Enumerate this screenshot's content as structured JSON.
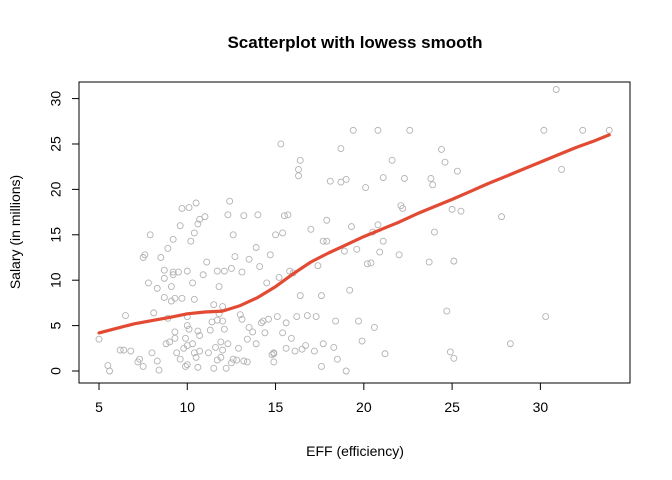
{
  "chart_data": {
    "type": "scatter",
    "title": "Scatterplot with lowess smooth",
    "xlabel": "EFF (efficiency)",
    "ylabel": "Salary (in millions)",
    "xlim": [
      5,
      34
    ],
    "ylim": [
      0,
      31
    ],
    "xticks": [
      5,
      10,
      15,
      20,
      25,
      30
    ],
    "yticks": [
      0,
      5,
      10,
      15,
      20,
      25,
      30
    ],
    "grid": false,
    "point_color": "#b3b3b3",
    "line_color": "#e34a33",
    "points": [
      [
        5.0,
        3.5
      ],
      [
        5.5,
        0.6
      ],
      [
        5.6,
        0.0
      ],
      [
        6.2,
        2.3
      ],
      [
        6.4,
        2.3
      ],
      [
        6.5,
        6.1
      ],
      [
        6.8,
        2.2
      ],
      [
        7.2,
        1.0
      ],
      [
        7.3,
        1.3
      ],
      [
        7.5,
        0.5
      ],
      [
        7.5,
        12.5
      ],
      [
        7.6,
        12.8
      ],
      [
        7.8,
        9.7
      ],
      [
        7.9,
        15.0
      ],
      [
        8.0,
        2.0
      ],
      [
        8.1,
        6.4
      ],
      [
        8.3,
        1.1
      ],
      [
        8.3,
        9.1
      ],
      [
        8.4,
        0.1
      ],
      [
        8.5,
        12.5
      ],
      [
        8.7,
        8.1
      ],
      [
        8.7,
        10.2
      ],
      [
        8.7,
        11.1
      ],
      [
        8.8,
        3.0
      ],
      [
        8.9,
        5.8
      ],
      [
        8.9,
        13.5
      ],
      [
        9.0,
        3.2
      ],
      [
        9.1,
        7.7
      ],
      [
        9.1,
        9.3
      ],
      [
        9.2,
        10.6
      ],
      [
        9.2,
        10.9
      ],
      [
        9.2,
        14.5
      ],
      [
        9.3,
        3.6
      ],
      [
        9.3,
        4.3
      ],
      [
        9.3,
        8.0
      ],
      [
        9.4,
        2.0
      ],
      [
        9.5,
        10.9
      ],
      [
        9.6,
        1.3
      ],
      [
        9.6,
        16.0
      ],
      [
        9.7,
        17.9
      ],
      [
        9.7,
        8.0
      ],
      [
        9.8,
        2.5
      ],
      [
        9.9,
        0.5
      ],
      [
        9.9,
        3.6
      ],
      [
        10.0,
        0.7
      ],
      [
        10.0,
        2.8
      ],
      [
        10.0,
        5.0
      ],
      [
        10.0,
        6.0
      ],
      [
        10.0,
        11.0
      ],
      [
        10.1,
        4.6
      ],
      [
        10.1,
        18.0
      ],
      [
        10.2,
        14.3
      ],
      [
        10.3,
        3.0
      ],
      [
        10.3,
        9.7
      ],
      [
        10.4,
        2.0
      ],
      [
        10.4,
        7.9
      ],
      [
        10.4,
        15.2
      ],
      [
        10.5,
        1.5
      ],
      [
        10.5,
        18.5
      ],
      [
        10.6,
        0.4
      ],
      [
        10.6,
        4.4
      ],
      [
        10.6,
        16.2
      ],
      [
        10.7,
        2.2
      ],
      [
        10.7,
        16.7
      ],
      [
        10.7,
        3.9
      ],
      [
        10.9,
        10.6
      ],
      [
        11.0,
        17.0
      ],
      [
        11.1,
        12.0
      ],
      [
        11.2,
        2.0
      ],
      [
        11.3,
        4.5
      ],
      [
        11.4,
        5.4
      ],
      [
        11.5,
        0.3
      ],
      [
        11.5,
        7.3
      ],
      [
        11.6,
        2.6
      ],
      [
        11.7,
        1.2
      ],
      [
        11.7,
        5.6
      ],
      [
        11.7,
        11.0
      ],
      [
        11.8,
        6.3
      ],
      [
        11.8,
        9.3
      ],
      [
        11.9,
        3.2
      ],
      [
        11.9,
        1.5
      ],
      [
        12.0,
        2.3
      ],
      [
        12.0,
        5.5
      ],
      [
        12.0,
        7.1
      ],
      [
        12.1,
        11.0
      ],
      [
        12.1,
        4.6
      ],
      [
        12.2,
        0.3
      ],
      [
        12.3,
        3.0
      ],
      [
        12.3,
        17.2
      ],
      [
        12.4,
        18.7
      ],
      [
        12.5,
        11.3
      ],
      [
        12.5,
        0.9
      ],
      [
        12.6,
        1.3
      ],
      [
        12.6,
        15.0
      ],
      [
        12.7,
        12.6
      ],
      [
        12.8,
        1.2
      ],
      [
        12.9,
        2.5
      ],
      [
        13.0,
        6.2
      ],
      [
        13.1,
        10.9
      ],
      [
        13.1,
        5.7
      ],
      [
        13.2,
        1.1
      ],
      [
        13.2,
        17.1
      ],
      [
        13.4,
        1.0
      ],
      [
        13.4,
        3.5
      ],
      [
        13.5,
        4.8
      ],
      [
        13.5,
        12.3
      ],
      [
        13.7,
        4.3
      ],
      [
        13.9,
        13.6
      ],
      [
        13.9,
        3.0
      ],
      [
        14.0,
        17.2
      ],
      [
        14.1,
        11.5
      ],
      [
        14.2,
        5.3
      ],
      [
        14.3,
        5.5
      ],
      [
        14.4,
        4.2
      ],
      [
        14.5,
        9.7
      ],
      [
        14.6,
        5.7
      ],
      [
        14.7,
        12.8
      ],
      [
        14.8,
        1.8
      ],
      [
        14.9,
        1.9
      ],
      [
        14.9,
        1.0
      ],
      [
        14.9,
        2.0
      ],
      [
        15.0,
        15.0
      ],
      [
        15.1,
        6.0
      ],
      [
        15.2,
        10.3
      ],
      [
        15.3,
        25.0
      ],
      [
        15.4,
        15.2
      ],
      [
        15.4,
        4.2
      ],
      [
        15.5,
        17.1
      ],
      [
        15.6,
        2.5
      ],
      [
        15.6,
        5.3
      ],
      [
        15.7,
        17.2
      ],
      [
        15.8,
        11.0
      ],
      [
        15.9,
        3.6
      ],
      [
        16.0,
        10.8
      ],
      [
        16.1,
        2.2
      ],
      [
        16.2,
        6.0
      ],
      [
        16.3,
        22.2
      ],
      [
        16.3,
        21.5
      ],
      [
        16.4,
        23.2
      ],
      [
        16.4,
        8.3
      ],
      [
        16.5,
        2.4
      ],
      [
        16.7,
        2.8
      ],
      [
        16.8,
        6.1
      ],
      [
        17.0,
        15.6
      ],
      [
        17.2,
        2.2
      ],
      [
        17.3,
        6.0
      ],
      [
        17.4,
        11.6
      ],
      [
        17.6,
        8.3
      ],
      [
        17.6,
        0.5
      ],
      [
        17.7,
        3.0
      ],
      [
        17.7,
        14.3
      ],
      [
        17.9,
        14.3
      ],
      [
        17.9,
        16.6
      ],
      [
        18.1,
        20.9
      ],
      [
        18.3,
        2.6
      ],
      [
        18.4,
        5.5
      ],
      [
        18.5,
        1.3
      ],
      [
        18.7,
        20.8
      ],
      [
        18.7,
        24.5
      ],
      [
        18.9,
        13.2
      ],
      [
        19.0,
        21.1
      ],
      [
        19.0,
        0.0
      ],
      [
        19.2,
        8.9
      ],
      [
        19.3,
        15.9
      ],
      [
        19.4,
        26.5
      ],
      [
        19.6,
        13.4
      ],
      [
        19.7,
        5.5
      ],
      [
        19.9,
        3.3
      ],
      [
        20.1,
        20.2
      ],
      [
        20.2,
        11.8
      ],
      [
        20.4,
        11.9
      ],
      [
        20.5,
        15.3
      ],
      [
        20.6,
        4.8
      ],
      [
        20.8,
        16.1
      ],
      [
        20.8,
        26.5
      ],
      [
        20.9,
        13.1
      ],
      [
        21.1,
        14.3
      ],
      [
        21.1,
        21.3
      ],
      [
        21.2,
        1.9
      ],
      [
        21.6,
        23.2
      ],
      [
        22.0,
        12.8
      ],
      [
        22.1,
        18.2
      ],
      [
        22.2,
        17.9
      ],
      [
        22.3,
        21.2
      ],
      [
        22.6,
        26.5
      ],
      [
        23.7,
        12.0
      ],
      [
        23.8,
        21.2
      ],
      [
        23.9,
        20.5
      ],
      [
        24.0,
        15.3
      ],
      [
        24.4,
        24.4
      ],
      [
        24.6,
        23.0
      ],
      [
        24.7,
        6.6
      ],
      [
        24.9,
        2.1
      ],
      [
        25.0,
        17.8
      ],
      [
        25.1,
        1.4
      ],
      [
        25.1,
        12.1
      ],
      [
        25.3,
        22.0
      ],
      [
        25.5,
        17.6
      ],
      [
        27.8,
        17.0
      ],
      [
        28.3,
        3.0
      ],
      [
        30.2,
        26.5
      ],
      [
        30.3,
        6.0
      ],
      [
        30.9,
        31.0
      ],
      [
        31.2,
        22.2
      ],
      [
        32.4,
        26.5
      ],
      [
        33.9,
        26.5
      ]
    ],
    "lowess": [
      [
        5.0,
        4.2
      ],
      [
        6.0,
        4.7
      ],
      [
        7.0,
        5.2
      ],
      [
        8.0,
        5.55
      ],
      [
        9.0,
        5.9
      ],
      [
        10.0,
        6.3
      ],
      [
        11.0,
        6.5
      ],
      [
        12.0,
        6.6
      ],
      [
        13.0,
        7.2
      ],
      [
        14.0,
        8.1
      ],
      [
        15.0,
        9.3
      ],
      [
        16.0,
        10.7
      ],
      [
        17.0,
        12.0
      ],
      [
        18.0,
        13.0
      ],
      [
        19.0,
        13.9
      ],
      [
        20.0,
        14.8
      ],
      [
        21.0,
        15.6
      ],
      [
        22.0,
        16.4
      ],
      [
        23.0,
        17.3
      ],
      [
        24.0,
        18.1
      ],
      [
        25.0,
        18.9
      ],
      [
        26.0,
        19.75
      ],
      [
        27.0,
        20.6
      ],
      [
        28.0,
        21.4
      ],
      [
        29.0,
        22.2
      ],
      [
        30.0,
        23.0
      ],
      [
        31.0,
        23.8
      ],
      [
        32.0,
        24.6
      ],
      [
        33.0,
        25.3
      ],
      [
        33.9,
        26.0
      ]
    ]
  }
}
